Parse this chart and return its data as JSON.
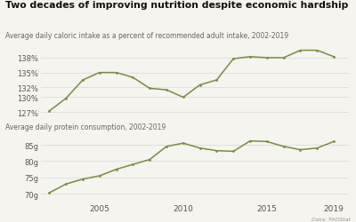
{
  "title": "Two decades of improving nutrition despite economic hardship",
  "subtitle1": "Average daily caloric intake as a percent of recommended adult intake, 2002-2019",
  "subtitle2": "Average daily protein consumption, 2002-2019",
  "source": "Data: FAOStat",
  "line_color": "#7a8c3f",
  "years": [
    2002,
    2003,
    2004,
    2005,
    2006,
    2007,
    2008,
    2009,
    2010,
    2011,
    2012,
    2013,
    2014,
    2015,
    2016,
    2017,
    2018,
    2019
  ],
  "caloric": [
    127.2,
    129.8,
    133.5,
    135.0,
    135.0,
    134.0,
    131.8,
    131.5,
    130.0,
    132.5,
    133.5,
    137.8,
    138.2,
    138.0,
    138.0,
    139.5,
    139.5,
    138.2
  ],
  "protein": [
    70.3,
    73.0,
    74.5,
    75.5,
    77.5,
    79.0,
    80.5,
    84.5,
    85.5,
    84.0,
    83.2,
    83.0,
    86.2,
    86.0,
    84.5,
    83.5,
    84.0,
    86.0
  ],
  "caloric_yticks": [
    127,
    130,
    132,
    135,
    138
  ],
  "protein_yticks": [
    70,
    75,
    80,
    85
  ],
  "xticks": [
    2005,
    2010,
    2015,
    2019
  ],
  "background_color": "#f5f4ef",
  "grid_color": "#d8d8d4",
  "tick_color": "#555555",
  "subtitle_color": "#666666",
  "title_color": "#111111",
  "source_color": "#999999"
}
